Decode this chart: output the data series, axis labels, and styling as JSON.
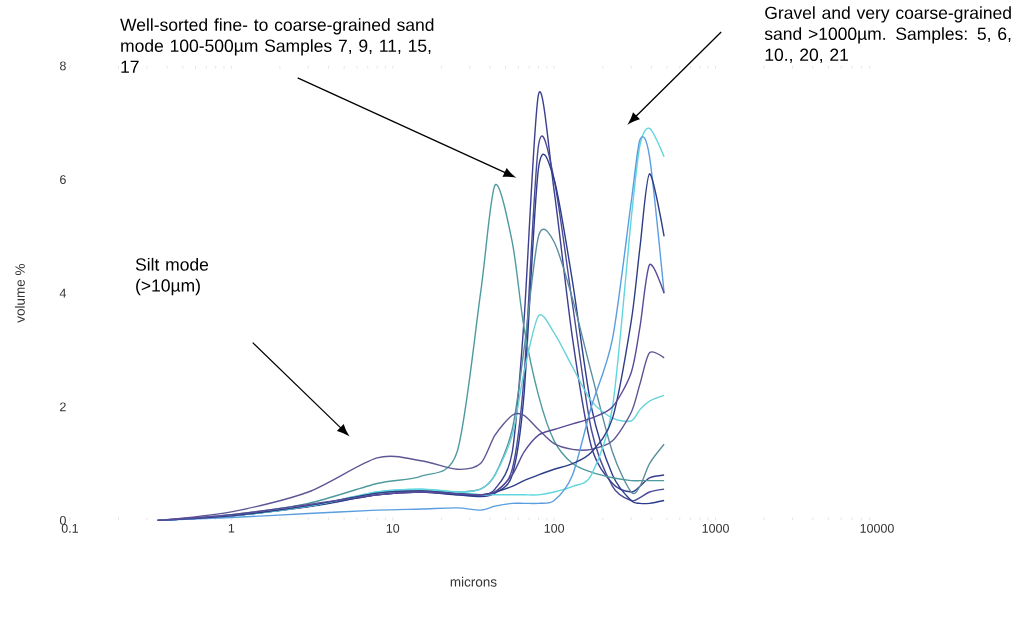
{
  "chart_data": {
    "type": "line",
    "xlabel": "microns",
    "ylabel": "volume %",
    "log": "x",
    "xlim": [
      0.1,
      10000
    ],
    "ylim": [
      0,
      8
    ],
    "xticks": [
      {
        "value": 0.1,
        "label": "0.1"
      },
      {
        "value": 1,
        "label": "1"
      },
      {
        "value": 10,
        "label": "10"
      },
      {
        "value": 100,
        "label": "100"
      },
      {
        "value": 1000,
        "label": "1000"
      },
      {
        "value": 10000,
        "label": "10000"
      }
    ],
    "yticks": [
      0,
      2,
      4,
      6,
      8
    ],
    "x": [
      0.35,
      1,
      3,
      8,
      15,
      25,
      35,
      43,
      55,
      65,
      80,
      100,
      130,
      170,
      230,
      300,
      340,
      390,
      480
    ],
    "series": [
      {
        "color": "#3b3f8e",
        "values": [
          0,
          0.08,
          0.25,
          0.45,
          0.5,
          0.45,
          0.45,
          0.55,
          1.2,
          3.5,
          7.5,
          5.8,
          3.2,
          1.3,
          0.65,
          0.5,
          0.6,
          0.75,
          0.8
        ]
      },
      {
        "color": "#4a4a96",
        "values": [
          0,
          0.08,
          0.25,
          0.48,
          0.52,
          0.48,
          0.45,
          0.5,
          0.9,
          2.5,
          6.6,
          6.0,
          3.8,
          1.6,
          0.6,
          0.35,
          0.4,
          0.5,
          0.55
        ]
      },
      {
        "color": "#2b3d8c",
        "values": [
          0,
          0.08,
          0.24,
          0.45,
          0.5,
          0.45,
          0.42,
          0.48,
          0.8,
          2.2,
          6.2,
          6.0,
          4.2,
          2.0,
          0.8,
          0.35,
          0.3,
          0.3,
          0.35
        ]
      },
      {
        "color": "#4e9a9e",
        "values": [
          0,
          0.1,
          0.3,
          0.65,
          0.78,
          1.2,
          4.0,
          5.9,
          4.9,
          3.4,
          2.2,
          1.4,
          1.0,
          0.85,
          0.75,
          0.7,
          0.7,
          0.7,
          0.7
        ]
      },
      {
        "color": "#5b8e9e",
        "values": [
          0,
          0.08,
          0.25,
          0.48,
          0.52,
          0.5,
          0.55,
          0.8,
          1.6,
          3.0,
          5.0,
          4.9,
          3.9,
          2.6,
          1.2,
          0.5,
          0.6,
          1.0,
          1.34
        ]
      },
      {
        "color": "#66d2da",
        "values": [
          0,
          0.08,
          0.25,
          0.5,
          0.55,
          0.5,
          0.55,
          0.8,
          1.5,
          2.6,
          3.6,
          3.3,
          2.7,
          2.1,
          1.8,
          1.75,
          1.95,
          2.1,
          2.2
        ]
      },
      {
        "color": "#5c5794",
        "values": [
          0,
          0.15,
          0.5,
          1.1,
          1.05,
          0.9,
          1.0,
          1.5,
          1.85,
          1.85,
          1.6,
          1.35,
          1.25,
          1.25,
          1.4,
          1.9,
          2.4,
          2.95,
          2.86
        ]
      },
      {
        "color": "#5fd6de",
        "values": [
          0,
          0.08,
          0.25,
          0.5,
          0.55,
          0.5,
          0.45,
          0.45,
          0.45,
          0.45,
          0.45,
          0.5,
          0.6,
          0.8,
          2.0,
          5.3,
          6.6,
          6.9,
          6.4
        ]
      },
      {
        "color": "#5a9ee0",
        "values": [
          0,
          0.05,
          0.12,
          0.18,
          0.2,
          0.22,
          0.18,
          0.25,
          0.3,
          0.3,
          0.3,
          0.35,
          0.8,
          2.0,
          3.2,
          5.6,
          6.7,
          6.4,
          4.0
        ]
      },
      {
        "color": "#2e3e86",
        "values": [
          0,
          0.08,
          0.26,
          0.48,
          0.52,
          0.47,
          0.45,
          0.5,
          0.6,
          0.7,
          0.8,
          0.9,
          1.0,
          1.2,
          1.8,
          3.5,
          4.8,
          6.1,
          5.0
        ]
      },
      {
        "color": "#5a4a9a",
        "values": [
          0,
          0.1,
          0.28,
          0.45,
          0.5,
          0.47,
          0.45,
          0.5,
          0.8,
          1.2,
          1.5,
          1.6,
          1.7,
          1.8,
          2.0,
          2.6,
          3.4,
          4.5,
          4.0
        ]
      }
    ],
    "annotations": [
      "Silt mode (>10µm)",
      "Well-sorted fine- to coarse-grained sand mode 100-500µm Samples 7, 9, 11, 15,  17",
      "Gravel and very coarse-grained  sand >1000µm. Samples: 5, 6, 10., 20, 21"
    ]
  }
}
